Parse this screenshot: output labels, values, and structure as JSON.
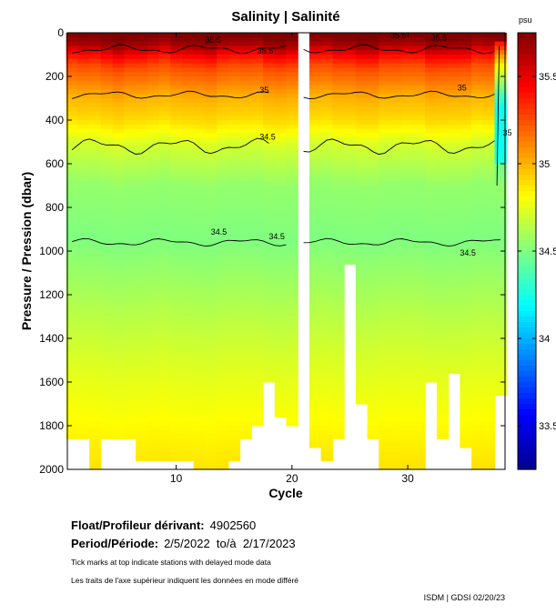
{
  "chart_data": {
    "type": "heatmap",
    "title": "Salinity | Salinité",
    "xlabel": "Cycle",
    "ylabel": "Pressure / Pression (dbar)",
    "x_range": [
      1,
      38
    ],
    "y_range": [
      0,
      2000
    ],
    "x_ticks": [
      10,
      20,
      30
    ],
    "y_ticks": [
      0,
      200,
      400,
      600,
      800,
      1000,
      1200,
      1400,
      1600,
      1800,
      2000
    ],
    "colorbar": {
      "unit": "psu",
      "range": [
        33.25,
        35.75
      ],
      "ticks": [
        33.5,
        34,
        34.5,
        35,
        35.5
      ],
      "tick_labels": [
        "33.5",
        "34",
        "34.5",
        "35",
        "35.5"
      ]
    },
    "contour_labels": [
      {
        "text": "35.5",
        "cycle": 12.5,
        "pressure": 45
      },
      {
        "text": "35.5",
        "cycle": 17.0,
        "pressure": 95
      },
      {
        "text": "35.5",
        "cycle": 28.5,
        "pressure": 25
      },
      {
        "text": "35.5",
        "cycle": 32.0,
        "pressure": 35
      },
      {
        "text": "35",
        "cycle": 17.2,
        "pressure": 275
      },
      {
        "text": "35",
        "cycle": 34.3,
        "pressure": 265
      },
      {
        "text": "35",
        "cycle": 38.2,
        "pressure": 470
      },
      {
        "text": "34.5",
        "cycle": 17.2,
        "pressure": 490
      },
      {
        "text": "34.5",
        "cycle": 13.0,
        "pressure": 925
      },
      {
        "text": "34.5",
        "cycle": 18.0,
        "pressure": 945
      },
      {
        "text": "34.5",
        "cycle": 34.5,
        "pressure": 1020
      }
    ],
    "missing_cycle": 20,
    "profile_depths_dbar": [
      1860,
      1860,
      2000,
      1860,
      1860,
      1860,
      1960,
      1960,
      1960,
      1960,
      1960,
      2000,
      2000,
      2000,
      1960,
      1860,
      1800,
      1600,
      1750,
      1800,
      null,
      1890,
      1960,
      1860,
      1060,
      1700,
      1860,
      2000,
      2000,
      2000,
      2000,
      1600,
      1860,
      1560,
      1900,
      2000,
      2000,
      1660
    ]
  },
  "info": {
    "float_label": "Float/Profileur dérivant:",
    "float_id": "4902560",
    "period_label": "Period/Période:",
    "period_value": "2/5/2022  to/à  2/17/2023",
    "note_en": "Tick marks at top indicate stations with delayed mode data",
    "note_fr": "Les traits de l'axe supérieur indiquent les données en mode différé",
    "stamp": "ISDM | GDSI  02/20/23"
  }
}
